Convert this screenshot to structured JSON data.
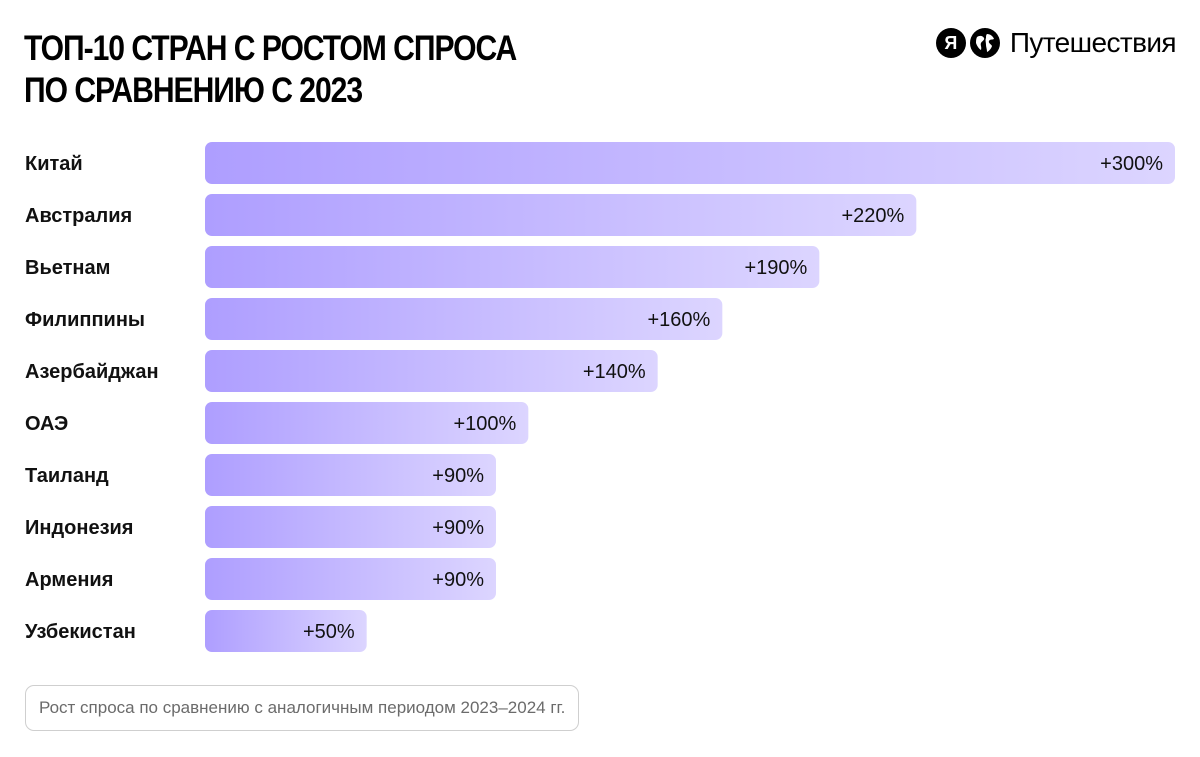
{
  "header": {
    "title_line1": "ТОП-10 СТРАН С РОСТОМ СПРОСА",
    "title_line2": "ПО СРАВНЕНИЮ С 2023",
    "brand_letter": "Я",
    "brand_name": "Путешествия",
    "brand_icon": "globe-icon"
  },
  "chart_data": {
    "type": "bar",
    "orientation": "horizontal",
    "categories": [
      "Китай",
      "Австралия",
      "Вьетнам",
      "Филиппины",
      "Азербайджан",
      "ОАЭ",
      "Таиланд",
      "Индонезия",
      "Армения",
      "Узбекистан"
    ],
    "values": [
      300,
      220,
      190,
      160,
      140,
      100,
      90,
      90,
      90,
      50
    ],
    "data_labels": [
      "+300%",
      "+220%",
      "+190%",
      "+160%",
      "+140%",
      "+100%",
      "+90%",
      "+90%",
      "+90%",
      "+50%"
    ],
    "xlim": [
      0,
      300
    ],
    "grid": false,
    "legend": "none",
    "colors": {
      "bar_start": "#ae9eff",
      "bar_end": "#dcd5ff",
      "label_text": "#111111"
    }
  },
  "footnote": "Рост спроса по сравнению с аналогичным периодом 2023–2024 гг."
}
